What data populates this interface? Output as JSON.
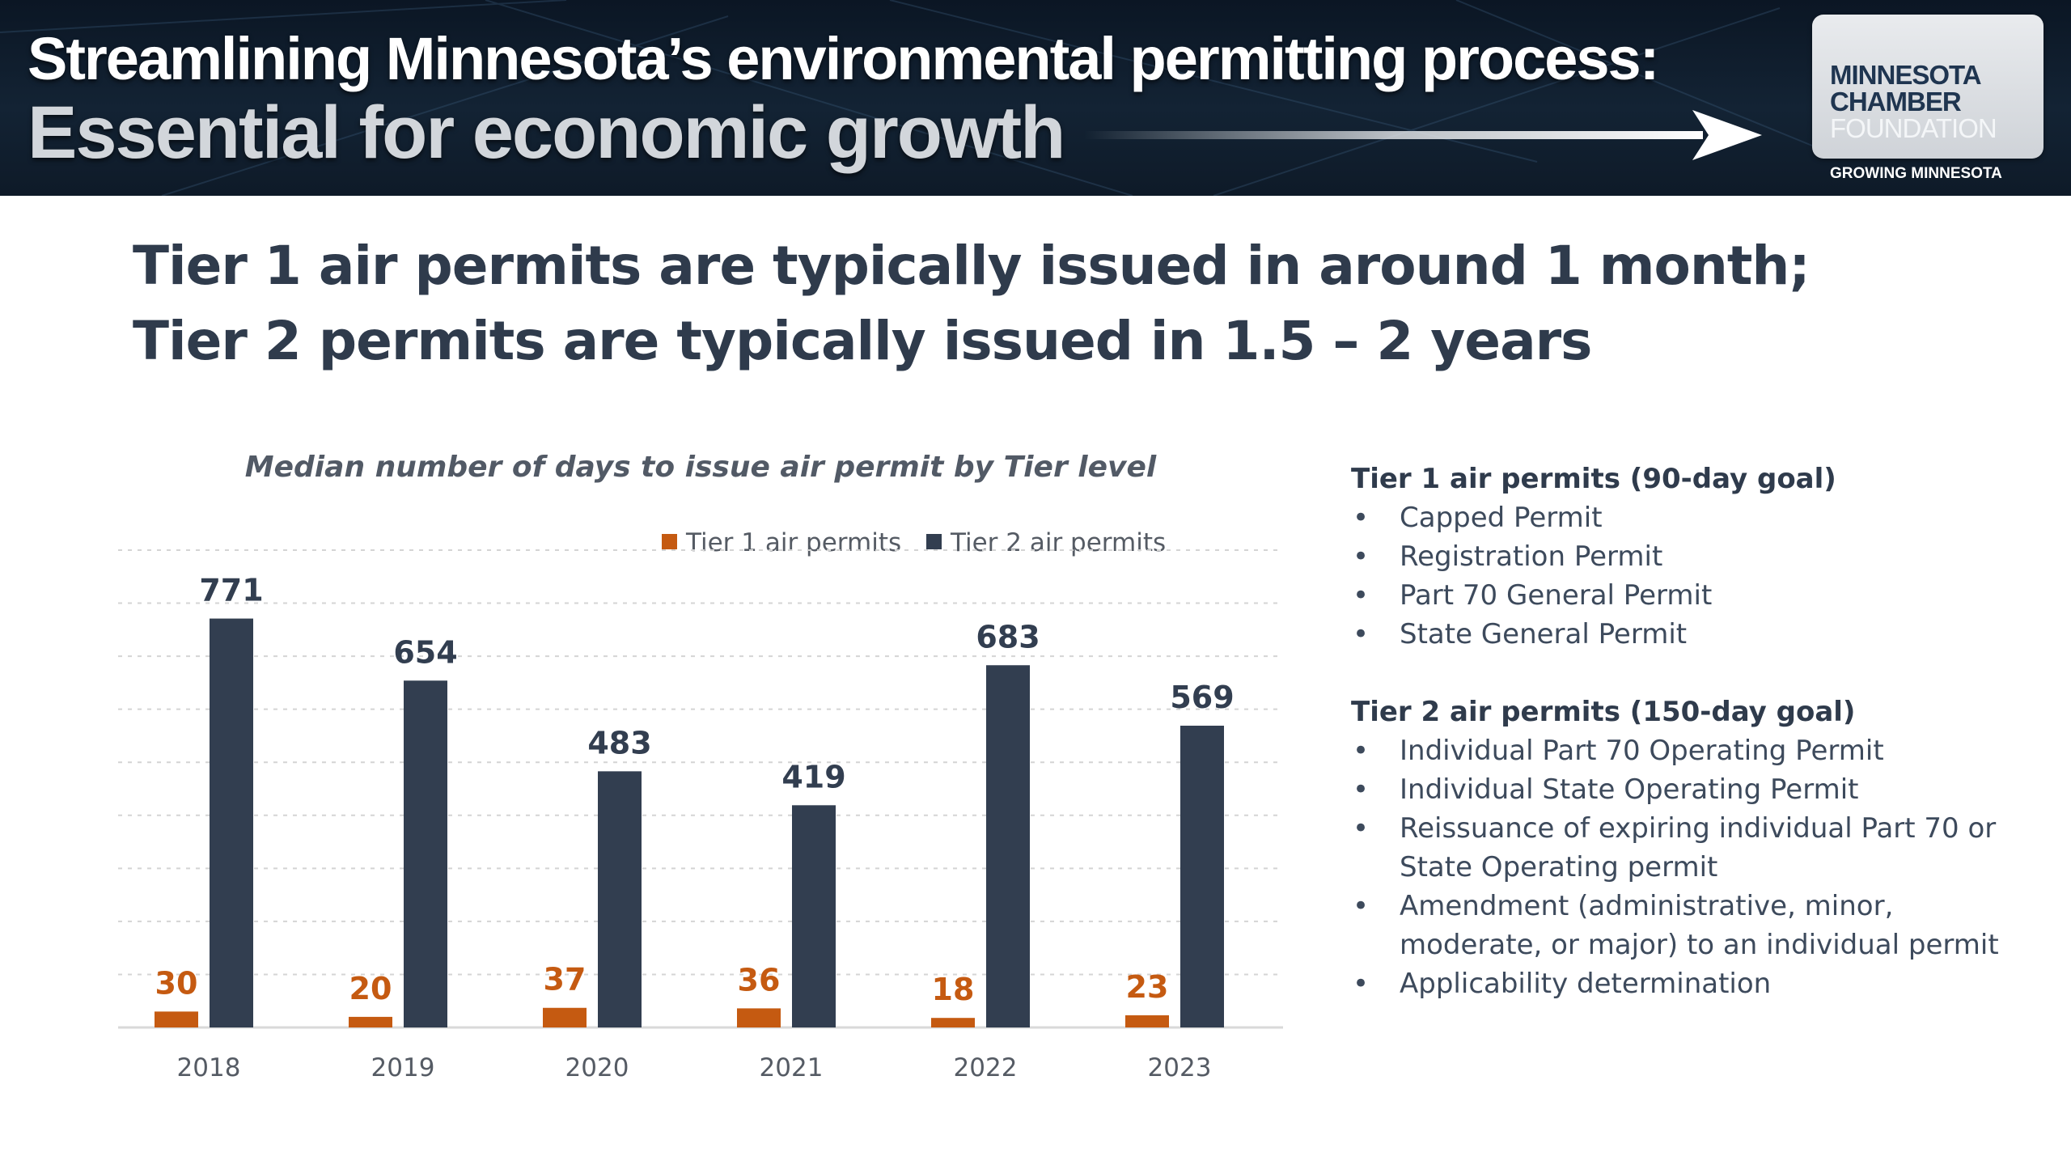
{
  "banner": {
    "title_line1": "Streamlining Minnesota’s environmental permitting process:",
    "title_line2": "Essential for economic growth",
    "logo": {
      "line1": "MINNESOTA",
      "line2": "CHAMBER",
      "line3": "FOUNDATION",
      "tagline": "GROWING MINNESOTA"
    }
  },
  "headline": {
    "line1": "Tier 1 air permits are typically issued in around 1 month;",
    "line2": "Tier 2 permits are typically issued in 1.5 – 2 years"
  },
  "colors": {
    "tier1": "#c55a11",
    "tier2": "#323e50",
    "banner_bg": "#132334",
    "heading_text": "#2f3b4c"
  },
  "chart_data": {
    "type": "bar",
    "title": "Median number of days to issue air permit by Tier level",
    "xlabel": "",
    "ylabel": "",
    "categories": [
      "2018",
      "2019",
      "2020",
      "2021",
      "2022",
      "2023"
    ],
    "series": [
      {
        "name": "Tier 1 air permits",
        "values": [
          30,
          20,
          37,
          36,
          18,
          23
        ],
        "color": "#c55a11"
      },
      {
        "name": "Tier 2 air permits",
        "values": [
          771,
          654,
          483,
          419,
          683,
          569
        ],
        "color": "#323e50"
      }
    ],
    "ylim": [
      0,
      900
    ],
    "grid": true,
    "legend_position": "top"
  },
  "side_panel": {
    "tier1_heading": "Tier 1 air permits (90-day goal)",
    "tier1_items": [
      "Capped Permit",
      "Registration Permit",
      "Part 70 General Permit",
      "State General Permit"
    ],
    "tier2_heading": "Tier 2 air permits (150-day goal)",
    "tier2_items": [
      "Individual Part 70 Operating Permit",
      "Individual State Operating Permit",
      "Reissuance of expiring individual Part 70 or",
      "State Operating permit",
      "Amendment (administrative, minor,",
      "moderate, or major) to an individual permit",
      "Applicability determination"
    ],
    "bullet_glyph": "•"
  }
}
